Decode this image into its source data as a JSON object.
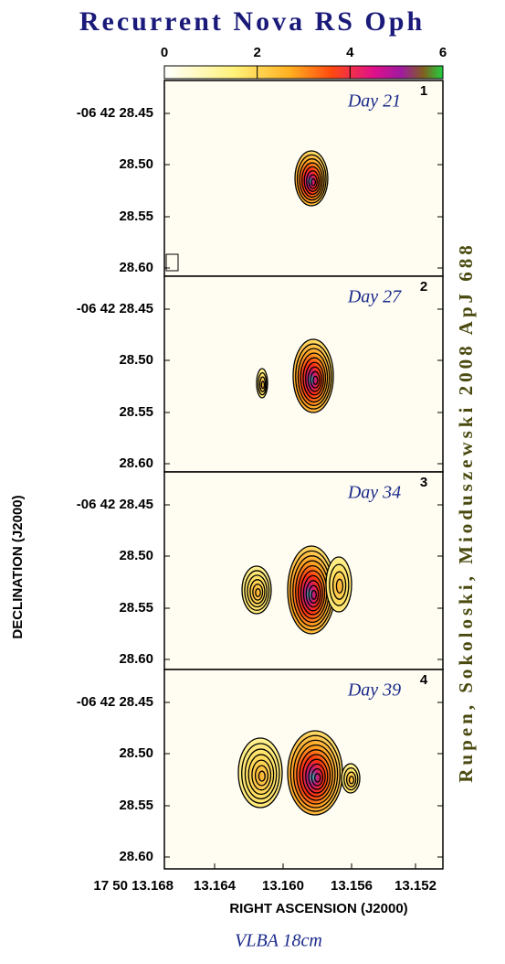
{
  "title": "Recurrent Nova RS Oph",
  "colorbar": {
    "ticks": [
      "0",
      "2",
      "4",
      "6"
    ]
  },
  "panels": [
    {
      "label": "Day 21",
      "number": "1",
      "yticks": [
        "-06 42 28.45",
        "28.50",
        "28.55",
        "28.60"
      ]
    },
    {
      "label": "Day 27",
      "number": "2",
      "yticks": [
        "-06 42 28.45",
        "28.50",
        "28.55",
        "28.60"
      ]
    },
    {
      "label": "Day 34",
      "number": "3",
      "yticks": [
        "-06 42 28.45",
        "28.50",
        "28.55",
        "28.60"
      ]
    },
    {
      "label": "Day 39",
      "number": "4",
      "yticks": [
        "-06 42 28.45",
        "28.50",
        "28.55",
        "28.60"
      ]
    }
  ],
  "x_axis": {
    "label": "RIGHT ASCENSION (J2000)",
    "ticks": [
      "17 50 13.168",
      "13.164",
      "13.160",
      "13.156",
      "13.152"
    ]
  },
  "y_axis": {
    "label": "DECLINATION (J2000)"
  },
  "credit": "Rupen, Sokoloski, Mioduszewski 2008 ApJ 688",
  "footer": "VLBA 18cm"
}
